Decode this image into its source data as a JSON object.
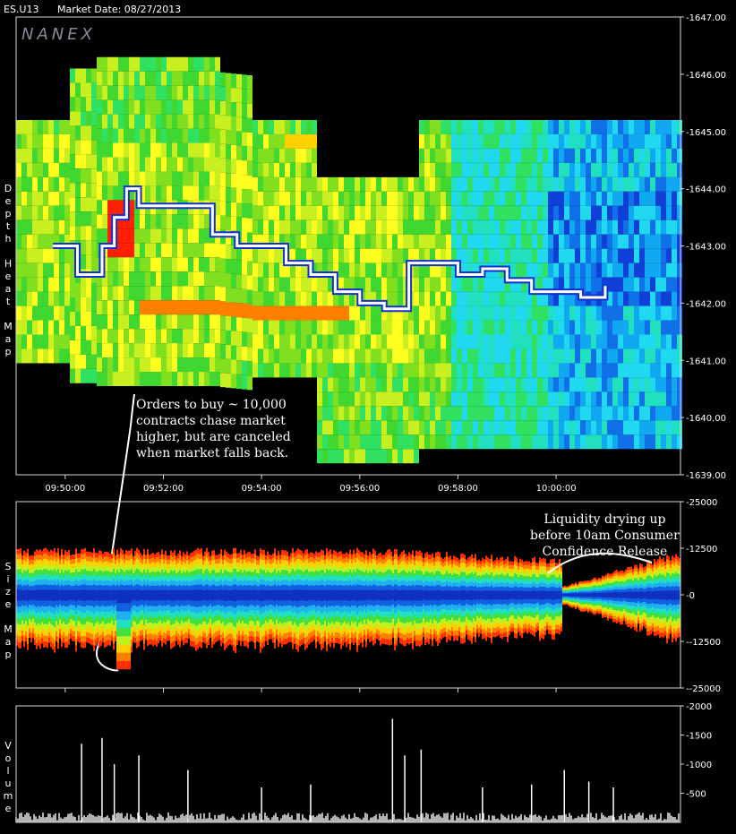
{
  "header": {
    "symbol": "ES.U13",
    "market_date": "Market Date: 08/27/2013"
  },
  "watermark": "NANEX",
  "colors": {
    "background": "#000000",
    "frame": "#d8d8d8",
    "price_line": "#ffffff"
  },
  "chart_data": [
    {
      "type": "heatmap",
      "panel": "depth",
      "ylabel": "Depth Heat Map",
      "yticks": [
        "1647.00",
        "1646.00",
        "1645.00",
        "1644.00",
        "1643.00",
        "1642.00",
        "1641.00",
        "1640.00",
        "1639.00"
      ],
      "ylim": [
        1639,
        1647
      ],
      "xticks": [
        "09:50:00",
        "09:52:00",
        "09:54:00",
        "09:56:00",
        "09:58:00",
        "10:00:00"
      ],
      "price_series": {
        "times": [
          "09:49:45",
          "09:50:15",
          "09:50:45",
          "09:51:00",
          "09:51:15",
          "09:51:30",
          "09:52:00",
          "09:52:30",
          "09:53:00",
          "09:53:30",
          "09:54:00",
          "09:54:30",
          "09:55:00",
          "09:55:30",
          "09:56:00",
          "09:56:30",
          "09:57:00",
          "09:57:30",
          "09:58:00",
          "09:58:30",
          "09:59:00",
          "09:59:30",
          "10:00:00",
          "10:00:30",
          "10:01:00"
        ],
        "prices": [
          1643.0,
          1642.5,
          1643.0,
          1643.5,
          1644.0,
          1643.7,
          1643.7,
          1643.7,
          1643.2,
          1643.0,
          1643.0,
          1642.7,
          1642.5,
          1642.2,
          1642.0,
          1641.9,
          1642.7,
          1642.7,
          1642.5,
          1642.6,
          1642.4,
          1642.2,
          1642.2,
          1642.1,
          1642.3
        ]
      },
      "annotation": "Orders to buy ~ 10,000\ncontracts chase market\nhigher, but are canceled\nwhen market falls back."
    },
    {
      "type": "area",
      "panel": "size",
      "ylabel": "Size Map",
      "yticks": [
        "25000",
        "12500",
        "0",
        "-12500",
        "-25000"
      ],
      "ylim": [
        -25000,
        25000
      ],
      "annotation": "Liquidity drying up\nbefore 10am Consumer\nConfidence Release"
    },
    {
      "type": "bar",
      "panel": "volume",
      "ylabel": "Volume",
      "yticks": [
        "2000",
        "1500",
        "1000",
        "500"
      ],
      "ylim": [
        0,
        2000
      ],
      "spikes": [
        {
          "t": "09:50:20",
          "v": 1350
        },
        {
          "t": "09:50:45",
          "v": 1450
        },
        {
          "t": "09:51:00",
          "v": 1000
        },
        {
          "t": "09:51:30",
          "v": 1150
        },
        {
          "t": "09:52:30",
          "v": 900
        },
        {
          "t": "09:54:00",
          "v": 600
        },
        {
          "t": "09:55:00",
          "v": 650
        },
        {
          "t": "09:56:40",
          "v": 1780
        },
        {
          "t": "09:56:55",
          "v": 1150
        },
        {
          "t": "09:57:15",
          "v": 1250
        },
        {
          "t": "09:58:30",
          "v": 600
        },
        {
          "t": "09:59:30",
          "v": 650
        },
        {
          "t": "10:00:10",
          "v": 900
        },
        {
          "t": "10:00:40",
          "v": 700
        },
        {
          "t": "10:01:10",
          "v": 600
        }
      ]
    }
  ]
}
